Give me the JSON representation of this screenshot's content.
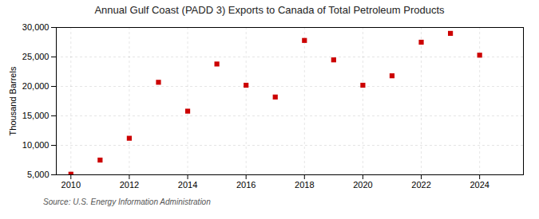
{
  "chart_data": {
    "type": "scatter",
    "title": "Annual Gulf Coast (PADD 3) Exports to Canada of Total Petroleum Products",
    "ylabel": "Thousand Barrels",
    "source": "Source: U.S. Energy Information Administration",
    "x": [
      2010,
      2011,
      2012,
      2013,
      2014,
      2015,
      2016,
      2017,
      2018,
      2019,
      2020,
      2021,
      2022,
      2023,
      2024
    ],
    "values": [
      5100,
      7500,
      11200,
      20700,
      15800,
      23800,
      20200,
      18200,
      27800,
      24500,
      20200,
      21800,
      27500,
      29000,
      25300
    ],
    "color": "#cc0000",
    "marker": "square",
    "xlim": [
      2009.5,
      2025.5
    ],
    "xticks": [
      2010,
      2012,
      2014,
      2016,
      2018,
      2020,
      2022,
      2024
    ],
    "ylim": [
      5000,
      30000
    ],
    "yticks": [
      {
        "value": 5000,
        "label": "5,000"
      },
      {
        "value": 10000,
        "label": "10,000"
      },
      {
        "value": 15000,
        "label": "15,000"
      },
      {
        "value": 20000,
        "label": "20,000"
      },
      {
        "value": 25000,
        "label": "25,000"
      },
      {
        "value": 30000,
        "label": "30,000"
      }
    ],
    "grid": true
  }
}
